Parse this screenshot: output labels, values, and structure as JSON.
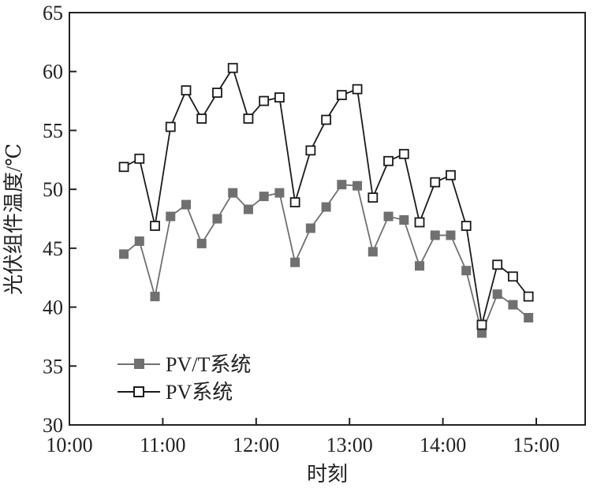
{
  "chart_data": {
    "type": "line",
    "title": "",
    "xlabel": "时刻",
    "ylabel": "光伏组件温度/℃",
    "xlim": [
      "10:00",
      "15:00"
    ],
    "ylim": [
      30,
      65
    ],
    "xticks": [
      "10:00",
      "11:00",
      "12:00",
      "13:00",
      "14:00",
      "15:00"
    ],
    "yticks": [
      "30",
      "35",
      "40",
      "45",
      "50",
      "55",
      "60",
      "65"
    ],
    "grid": false,
    "legend_position": "bottom-left",
    "x": [
      "10:35",
      "10:45",
      "10:55",
      "11:05",
      "11:15",
      "11:25",
      "11:35",
      "11:45",
      "11:55",
      "12:05",
      "12:15",
      "12:25",
      "12:35",
      "12:45",
      "12:55",
      "13:05",
      "13:15",
      "13:25",
      "13:35",
      "13:45",
      "13:55",
      "14:05",
      "14:15",
      "14:25",
      "14:35",
      "14:45",
      "14:55"
    ],
    "series": [
      {
        "name": "PV/T系统",
        "color": "#707070",
        "marker": "filled-square",
        "values": [
          44.5,
          45.6,
          40.9,
          47.7,
          48.7,
          45.4,
          47.5,
          49.7,
          48.3,
          49.4,
          49.7,
          43.8,
          46.7,
          48.5,
          50.4,
          50.3,
          44.7,
          47.7,
          47.4,
          43.5,
          46.1,
          46.1,
          43.1,
          37.8,
          41.1,
          40.2,
          39.1
        ]
      },
      {
        "name": "PV系统",
        "color": "#1a1a1a",
        "marker": "open-square",
        "values": [
          51.9,
          52.6,
          46.9,
          55.3,
          58.4,
          56.0,
          58.2,
          60.3,
          56.0,
          57.5,
          57.8,
          48.9,
          53.3,
          55.9,
          58.0,
          58.5,
          49.3,
          52.4,
          53.0,
          47.2,
          50.6,
          51.2,
          46.9,
          38.5,
          43.6,
          42.6,
          40.9
        ]
      }
    ]
  }
}
